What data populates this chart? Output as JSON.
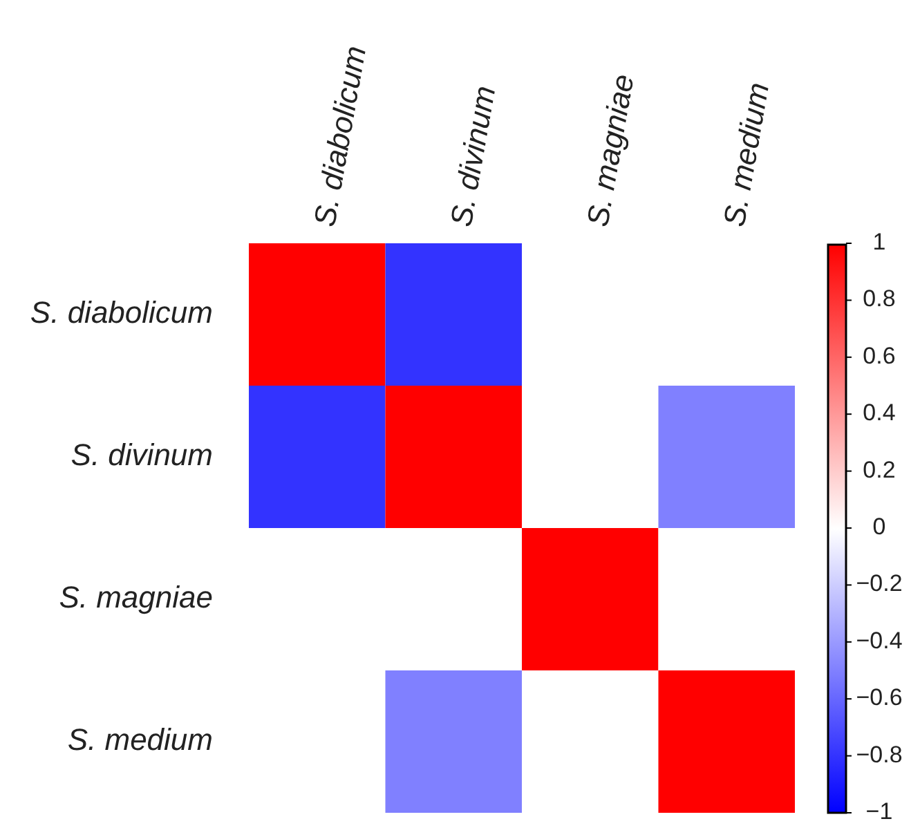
{
  "chart_data": {
    "type": "heatmap",
    "categories": [
      "S. diabolicum",
      "S. divinum",
      "S. magniae",
      "S. medium"
    ],
    "y_categories": [
      "S. diabolicum",
      "S. divinum",
      "S. magniae",
      "S. medium"
    ],
    "cells": [
      [
        1,
        -0.8,
        0,
        0
      ],
      [
        -0.8,
        1,
        0,
        -0.5
      ],
      [
        0,
        0,
        1,
        0
      ],
      [
        0,
        -0.5,
        0,
        1
      ]
    ],
    "clim": [
      -1,
      1
    ],
    "cticks": [
      1,
      0.8,
      0.6,
      0.4,
      0.2,
      0,
      -0.2,
      -0.4,
      -0.6,
      -0.8,
      -1
    ]
  }
}
